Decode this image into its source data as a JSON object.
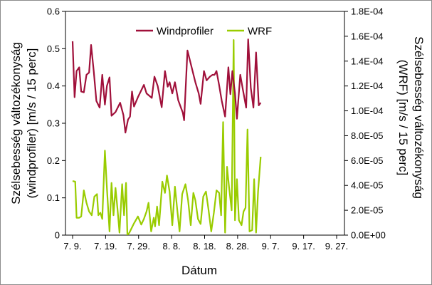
{
  "chart_data": {
    "type": "line",
    "title": "",
    "xlabel": "Dátum",
    "ylabel_left": "Szélsebesség változékonyság (windprofiler) [m/s / 15 perc]",
    "ylabel_left_lines": [
      "Szélsebesség  változékonyság",
      "(windprofiler)  [m/s / 15 perc]"
    ],
    "ylabel_right": "Szélsebesség változékonyság (WRF) [m/s / 15 perc]",
    "ylabel_right_lines": [
      "Szélsebesség változékonyság",
      "(WRF) [m/s / 15 perc]"
    ],
    "x_tick_labels": [
      "7. 9.",
      "7. 19.",
      "7. 29.",
      "8. 8.",
      "8. 18.",
      "8. 28.",
      "9. 7.",
      "9. 17.",
      "9. 27."
    ],
    "x_tick_days": [
      0,
      10,
      20,
      30,
      40,
      50,
      60,
      70,
      80
    ],
    "xlim_days": [
      0,
      83
    ],
    "ylim_left": [
      0,
      0.6
    ],
    "ylim_right": [
      0,
      0.00018
    ],
    "y_left_ticks": [
      "0",
      "0.1",
      "0.2",
      "0.3",
      "0.4",
      "0.5",
      "0.6"
    ],
    "y_right_ticks": [
      "0.0E+00",
      "2.0E-05",
      "4.0E-05",
      "6.0E-05",
      "8.0E-05",
      "1.0E-04",
      "1.2E-04",
      "1.4E-04",
      "1.6E-04",
      "1.8E-04"
    ],
    "legend_position": "top-center",
    "grid": false,
    "series": [
      {
        "name": "Windprofiler",
        "axis": "left",
        "color": "#a0103a",
        "points": [
          [
            0,
            0.52
          ],
          [
            0.6,
            0.37
          ],
          [
            1.2,
            0.44
          ],
          [
            2,
            0.45
          ],
          [
            2.6,
            0.385
          ],
          [
            3.4,
            0.383
          ],
          [
            4.2,
            0.43
          ],
          [
            5,
            0.436
          ],
          [
            5.6,
            0.51
          ],
          [
            6.4,
            0.44
          ],
          [
            7.2,
            0.36
          ],
          [
            8.2,
            0.342
          ],
          [
            9,
            0.43
          ],
          [
            9.8,
            0.35
          ],
          [
            10.4,
            0.4
          ],
          [
            11.2,
            0.423
          ],
          [
            11.8,
            0.32
          ],
          [
            13,
            0.33
          ],
          [
            14.4,
            0.355
          ],
          [
            15.4,
            0.322
          ],
          [
            16,
            0.275
          ],
          [
            16.8,
            0.31
          ],
          [
            17.4,
            0.318
          ],
          [
            18,
            0.385
          ],
          [
            18.6,
            0.345
          ],
          [
            19.8,
            0.37
          ],
          [
            21.6,
            0.403
          ],
          [
            22.4,
            0.38
          ],
          [
            24,
            0.368
          ],
          [
            24.8,
            0.425
          ],
          [
            25.8,
            0.4
          ],
          [
            27,
            0.343
          ],
          [
            28,
            0.44
          ],
          [
            28.8,
            0.398
          ],
          [
            29.4,
            0.41
          ],
          [
            30.2,
            0.38
          ],
          [
            31,
            0.41
          ],
          [
            32,
            0.362
          ],
          [
            33.4,
            0.328
          ],
          [
            33.8,
            0.308
          ],
          [
            34.8,
            0.495
          ],
          [
            37.2,
            0.41
          ],
          [
            38.2,
            0.38
          ],
          [
            38.8,
            0.352
          ],
          [
            39.8,
            0.44
          ],
          [
            40.6,
            0.415
          ],
          [
            41.6,
            0.425
          ],
          [
            42.4,
            0.43
          ],
          [
            43,
            0.43
          ],
          [
            43.6,
            0.44
          ],
          [
            44.4,
            0.402
          ],
          [
            45.2,
            0.36
          ],
          [
            46.2,
            0.318
          ],
          [
            47.2,
            0.45
          ],
          [
            47.8,
            0.378
          ],
          [
            48.4,
            0.44
          ],
          [
            49.2,
            0.38
          ],
          [
            49.8,
            0.312
          ],
          [
            50.8,
            0.43
          ],
          [
            51.6,
            0.39
          ],
          [
            52.6,
            0.342
          ],
          [
            53.2,
            0.525
          ],
          [
            54,
            0.395
          ],
          [
            54.8,
            0.342
          ],
          [
            55.6,
            0.49
          ],
          [
            56.4,
            0.348
          ],
          [
            57,
            0.355
          ]
        ]
      },
      {
        "name": "WRF",
        "axis": "right",
        "color": "#99cc00",
        "points": [
          [
            0,
            4.35e-05
          ],
          [
            0.8,
            4.3e-05
          ],
          [
            1.2,
            1.4e-05
          ],
          [
            2,
            1.4e-05
          ],
          [
            2.6,
            1.5e-05
          ],
          [
            3.4,
            3.6e-05
          ],
          [
            4.2,
            2.6e-05
          ],
          [
            5,
            1.9e-05
          ],
          [
            5.8,
            1.6e-05
          ],
          [
            6.6,
            3.1e-05
          ],
          [
            7.4,
            3.3e-05
          ],
          [
            7.8,
            1.6e-05
          ],
          [
            8.4,
            1.8e-05
          ],
          [
            9,
            1.3e-05
          ],
          [
            9.8,
            6.8e-05
          ],
          [
            10.4,
            3.8e-05
          ],
          [
            11.2,
            3e-06
          ],
          [
            11.8,
            4.2e-05
          ],
          [
            12.4,
            1.6e-05
          ],
          [
            13,
            3.8e-05
          ],
          [
            13.6,
            2.1e-05
          ],
          [
            14.2,
            2e-06
          ],
          [
            15,
            4.1e-05
          ],
          [
            15.6,
            1.6e-05
          ],
          [
            16.2,
            4.2e-05
          ],
          [
            16.6,
            0.0
          ],
          [
            17.2,
            2e-06
          ],
          [
            18.6,
            9.5e-06
          ],
          [
            19.8,
            1.5e-05
          ],
          [
            20.8,
            8.5e-06
          ],
          [
            21.6,
            1.3e-05
          ],
          [
            22.4,
            1.9e-05
          ],
          [
            23,
            2.6e-05
          ],
          [
            23.8,
            3e-06
          ],
          [
            24.6,
            1.4e-05
          ],
          [
            25,
            7e-06
          ],
          [
            25.6,
            2.3e-05
          ],
          [
            26.2,
            8e-06
          ],
          [
            27.2,
            4.3e-05
          ],
          [
            28,
            3.4e-05
          ],
          [
            28.6,
            4.8e-05
          ],
          [
            29.4,
            3.5e-05
          ],
          [
            30.2,
            8e-06
          ],
          [
            31,
            3.9e-05
          ],
          [
            31.8,
            1.8e-05
          ],
          [
            32.4,
            3e-06
          ],
          [
            33.2,
            3.3e-05
          ],
          [
            34.2,
            4.1e-05
          ],
          [
            35,
            2.8e-05
          ],
          [
            35.8,
            8e-06
          ],
          [
            36.6,
            3.4e-05
          ],
          [
            37.2,
            2.8e-05
          ],
          [
            38,
            1.3e-05
          ],
          [
            38.8,
            9e-06
          ],
          [
            39.6,
            3.1e-05
          ],
          [
            40.4,
            3.5e-05
          ],
          [
            41.2,
            2e-05
          ],
          [
            42,
            3e-06
          ],
          [
            42.8,
            1.8e-05
          ],
          [
            43.6,
            3.6e-05
          ],
          [
            44.4,
            3.4e-05
          ],
          [
            45,
            1.6e-05
          ],
          [
            45.6,
            9.1e-05
          ],
          [
            46.2,
            2e-06
          ],
          [
            46.8,
            5.5e-05
          ],
          [
            47.4,
            3.9e-05
          ],
          [
            48.2,
            2e-05
          ],
          [
            48.8,
            0.000157
          ],
          [
            49.2,
            1.2e-05
          ],
          [
            49.8,
            4.5e-05
          ],
          [
            50.4,
            1.2e-05
          ],
          [
            51.2,
            8e-06
          ],
          [
            51.8,
            1.9e-05
          ],
          [
            52.4,
            2.2e-05
          ],
          [
            53,
            8.5e-05
          ],
          [
            53.6,
            3e-06
          ],
          [
            54.4,
            4e-06
          ],
          [
            55,
            4.5e-05
          ],
          [
            55.6,
            2e-06
          ],
          [
            56.2,
            3.5e-05
          ],
          [
            57,
            6.3e-05
          ]
        ]
      }
    ]
  }
}
